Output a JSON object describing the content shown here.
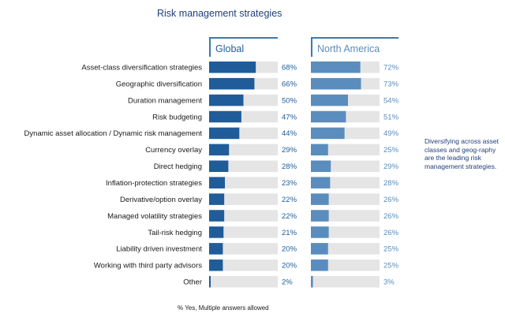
{
  "chart_data": {
    "type": "bar",
    "title": "Risk management strategies",
    "categories": [
      "Asset-class diversification strategies",
      "Geographic diversification",
      "Duration management",
      "Risk budgeting",
      "Dynamic asset allocation / Dynamic risk management",
      "Currency overlay",
      "Direct hedging",
      "Inflation-protection strategies",
      "Derivative/option overlay",
      "Managed volatility strategies",
      "Tail-risk hedging",
      "Liability driven investment",
      "Working with third party advisors",
      "Other"
    ],
    "series": [
      {
        "name": "Global",
        "values": [
          68,
          66,
          50,
          47,
          44,
          29,
          28,
          23,
          22,
          22,
          21,
          20,
          20,
          2
        ],
        "labels": [
          "68%",
          "66%",
          "50%",
          "47%",
          "44%",
          "29%",
          "28%",
          "23%",
          "22%",
          "22%",
          "21%",
          "20%",
          "20%",
          "2%"
        ],
        "color": "#1f5c99"
      },
      {
        "name": "North America",
        "values": [
          72,
          73,
          54,
          51,
          49,
          25,
          29,
          28,
          26,
          26,
          26,
          25,
          25,
          3
        ],
        "labels": [
          "72%",
          "73%",
          "54%",
          "51%",
          "49%",
          "25%",
          "29%",
          "28%",
          "26%",
          "26%",
          "26%",
          "25%",
          "25%",
          "3%"
        ],
        "color": "#5a8dbd"
      }
    ],
    "ylim": [
      0,
      100
    ],
    "track_color": "#e5e5e5",
    "note": "Diversifying across asset classes and geog-raphy are the leading risk management strategies.",
    "footnote": "% Yes, Multiple answers allowed"
  }
}
